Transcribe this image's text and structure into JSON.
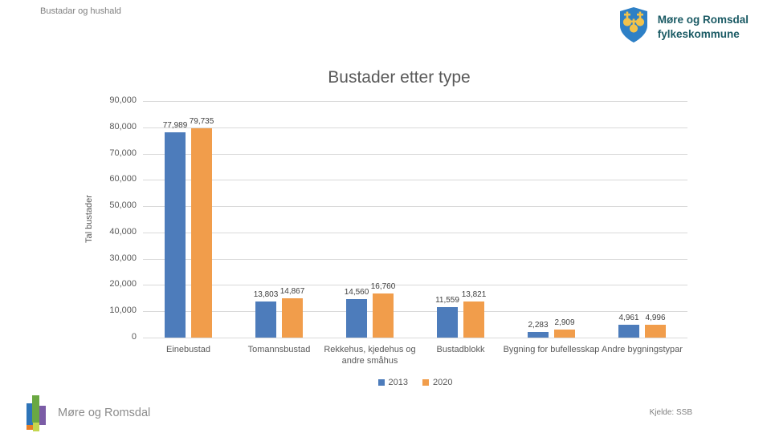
{
  "slide": {
    "breadcrumb": "Bustadar og hushald",
    "org": {
      "name_line1": "Møre og Romsdal",
      "name_line2": "fylkeskommune"
    },
    "footer_brand": "Møre og Romsdal",
    "source": "Kjelde: SSB"
  },
  "chart_data": {
    "type": "bar",
    "title": "Bustader etter type",
    "xlabel": "",
    "ylabel": "Tal bustader",
    "ylim": [
      0,
      90000
    ],
    "ytick_step": 10000,
    "ytick_labels": [
      "0",
      "10,000",
      "20,000",
      "30,000",
      "40,000",
      "50,000",
      "60,000",
      "70,000",
      "80,000",
      "90,000"
    ],
    "grid": true,
    "legend_position": "bottom",
    "categories": [
      "Einebustad",
      "Tomannsbustad",
      "Rekkehus, kjedehus og andre småhus",
      "Bustadblokk",
      "Bygning for bufellesskap",
      "Andre bygningstypar"
    ],
    "series": [
      {
        "name": "2013",
        "color": "#4d7cbb",
        "values": [
          77989,
          13803,
          14560,
          11559,
          2283,
          4961
        ],
        "value_labels": [
          "77,989",
          "13,803",
          "14,560",
          "11,559",
          "2,283",
          "4,961"
        ]
      },
      {
        "name": "2020",
        "color": "#f19d4b",
        "values": [
          79735,
          14867,
          16760,
          13821,
          2909,
          4996
        ],
        "value_labels": [
          "79,735",
          "14,867",
          "16,760",
          "13,821",
          "2,909",
          "4,996"
        ]
      }
    ]
  }
}
